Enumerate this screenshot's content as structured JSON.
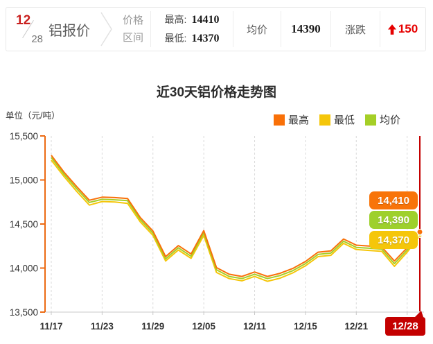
{
  "header": {
    "date": {
      "month": "12",
      "day": "28"
    },
    "product_name": "铝报价",
    "price_range_label": [
      "价格",
      "区间"
    ],
    "high_label": "最高:",
    "high_value": "14410",
    "low_label": "最低:",
    "low_value": "14370",
    "avg_label": "均价",
    "avg_value": "14390",
    "change_label": "涨跌",
    "change_value": "150",
    "change_direction": "up",
    "colors": {
      "date_red": "#c9201e",
      "change_red": "#e60000"
    }
  },
  "chart": {
    "title": "近30天铝价格走势图",
    "unit_label": "单位（元/吨）"
  },
  "chart_data": {
    "type": "line",
    "title": "近30天铝价格走势图",
    "ylabel": "单位（元/吨）",
    "ylim": [
      13500,
      15500
    ],
    "yticks": [
      15500,
      15000,
      14500,
      14000,
      13500
    ],
    "ytick_labels": [
      "15,500",
      "15,000",
      "14,500",
      "14,000",
      "13,500"
    ],
    "x_tick_labels": [
      "11/17",
      "11/23",
      "11/29",
      "12/05",
      "12/11",
      "12/15",
      "12/21",
      "12/28"
    ],
    "x_tick_indices": [
      0,
      4,
      8,
      12,
      16,
      20,
      24,
      28
    ],
    "n_points": 30,
    "grid": "vertical-dashed",
    "legend_position": "top-right",
    "axis_color": "#ec6a13",
    "grid_color": "#d9d9d9",
    "series": [
      {
        "key": "highest",
        "name": "最高",
        "color": "#f97008",
        "values": [
          15280,
          15090,
          14925,
          14770,
          14805,
          14800,
          14790,
          14575,
          14420,
          14130,
          14255,
          14160,
          14425,
          14005,
          13930,
          13905,
          13955,
          13905,
          13940,
          13995,
          14075,
          14180,
          14195,
          14330,
          14260,
          14250,
          14240,
          14080,
          14230,
          14410
        ]
      },
      {
        "key": "lowest",
        "name": "最低",
        "color": "#f5c60a",
        "values": [
          15225,
          15040,
          14870,
          14715,
          14755,
          14750,
          14735,
          14525,
          14370,
          14080,
          14205,
          14110,
          14370,
          13950,
          13880,
          13855,
          13905,
          13850,
          13885,
          13945,
          14025,
          14130,
          14145,
          14280,
          14210,
          14200,
          14190,
          14020,
          14180,
          14370
        ]
      },
      {
        "key": "average",
        "name": "均价",
        "color": "#a5cf27",
        "values": [
          15255,
          15065,
          14900,
          14745,
          14780,
          14775,
          14765,
          14550,
          14395,
          14105,
          14230,
          14135,
          14400,
          13980,
          13905,
          13880,
          13930,
          13880,
          13915,
          13970,
          14050,
          14155,
          14170,
          14305,
          14235,
          14225,
          14215,
          14050,
          14205,
          14390
        ]
      }
    ],
    "end_labels": [
      {
        "key": "highest",
        "text": "14,410",
        "color": "#f87409"
      },
      {
        "key": "average",
        "text": "14,390",
        "color": "#9ed02c"
      },
      {
        "key": "lowest",
        "text": "14,370",
        "color": "#f5c60a"
      }
    ],
    "current_marker": {
      "label": "12/28",
      "color": "#c40000"
    }
  }
}
